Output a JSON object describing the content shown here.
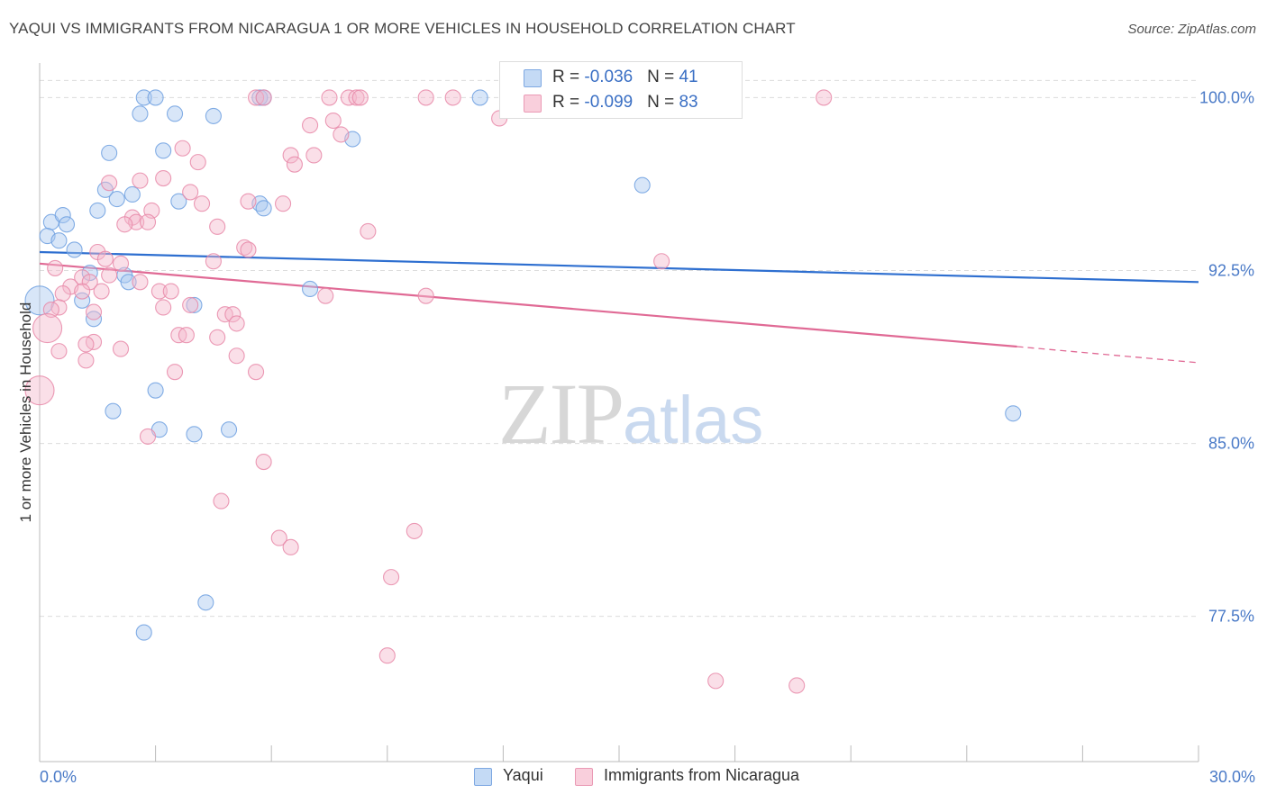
{
  "header": {
    "title": "YAQUI VS IMMIGRANTS FROM NICARAGUA 1 OR MORE VEHICLES IN HOUSEHOLD CORRELATION CHART",
    "source": "Source: ZipAtlas.com"
  },
  "watermark": {
    "zip": "ZIP",
    "atlas": "atlas"
  },
  "legend": {
    "rows": [
      {
        "r_label": "R = ",
        "r_value": "-0.036",
        "n_label": "N = ",
        "n_value": "41",
        "color": "#a9c8f0"
      },
      {
        "r_label": "R = ",
        "r_value": "-0.099",
        "n_label": "N = ",
        "n_value": "83",
        "color": "#f5b8cb"
      }
    ]
  },
  "bottom_legend": [
    {
      "label": "Yaqui",
      "color": "#a9c8f0"
    },
    {
      "label": "Immigrants from Nicaragua",
      "color": "#f5b8cb"
    }
  ],
  "chart_data": {
    "type": "scatter",
    "title": "YAQUI VS IMMIGRANTS FROM NICARAGUA 1 OR MORE VEHICLES IN HOUSEHOLD CORRELATION CHART",
    "ylabel": "1 or more Vehicles in Household",
    "xlabel": "",
    "xlim": [
      0,
      30
    ],
    "ylim": [
      71.2,
      101.5
    ],
    "x_tick_labels": [
      "0.0%",
      "30.0%"
    ],
    "y_ticks": [
      77.5,
      85.0,
      92.5,
      100.0
    ],
    "y_tick_labels": [
      "77.5%",
      "85.0%",
      "92.5%",
      "100.0%"
    ],
    "grid": true,
    "series": [
      {
        "name": "Yaqui",
        "color": "#6fa0e0",
        "fill": "#a9c8f0",
        "trend": {
          "x": [
            0.0,
            30.0
          ],
          "y": [
            93.3,
            92.0
          ]
        },
        "points": [
          [
            2.7,
            100.0
          ],
          [
            3.0,
            100.0
          ],
          [
            5.7,
            100.0
          ],
          [
            5.8,
            100.0
          ],
          [
            11.4,
            100.0
          ],
          [
            2.6,
            99.3
          ],
          [
            3.5,
            99.3
          ],
          [
            4.5,
            99.2
          ],
          [
            8.1,
            98.2
          ],
          [
            1.8,
            97.6
          ],
          [
            3.2,
            97.7
          ],
          [
            1.7,
            96.0
          ],
          [
            2.0,
            95.6
          ],
          [
            2.4,
            95.8
          ],
          [
            3.6,
            95.5
          ],
          [
            5.7,
            95.4
          ],
          [
            5.8,
            95.2
          ],
          [
            15.6,
            96.2
          ],
          [
            1.5,
            95.1
          ],
          [
            0.3,
            94.6
          ],
          [
            0.6,
            94.9
          ],
          [
            0.7,
            94.5
          ],
          [
            0.2,
            94.0
          ],
          [
            0.5,
            93.8
          ],
          [
            0.9,
            93.4
          ],
          [
            1.3,
            92.4
          ],
          [
            2.2,
            92.3
          ],
          [
            2.3,
            92.0
          ],
          [
            7.0,
            91.7
          ],
          [
            0.0,
            91.2
          ],
          [
            1.1,
            91.2
          ],
          [
            4.0,
            91.0
          ],
          [
            1.4,
            90.4
          ],
          [
            3.0,
            87.3
          ],
          [
            1.9,
            86.4
          ],
          [
            3.1,
            85.6
          ],
          [
            4.0,
            85.4
          ],
          [
            4.9,
            85.6
          ],
          [
            25.2,
            86.3
          ],
          [
            4.3,
            78.1
          ],
          [
            2.7,
            76.8
          ]
        ],
        "sizes_large": [
          [
            0.0,
            91.2
          ]
        ]
      },
      {
        "name": "Immigrants from Nicaragua",
        "color": "#e888a8",
        "fill": "#f5b8cb",
        "trend": {
          "x": [
            0.0,
            25.3
          ],
          "y": [
            92.8,
            89.2
          ]
        },
        "trend_dashed": {
          "x": [
            25.3,
            30.0
          ],
          "y": [
            89.2,
            88.5
          ]
        },
        "points": [
          [
            5.6,
            100.0
          ],
          [
            5.8,
            100.0
          ],
          [
            7.5,
            100.0
          ],
          [
            8.0,
            100.0
          ],
          [
            8.2,
            100.0
          ],
          [
            8.3,
            100.0
          ],
          [
            10.0,
            100.0
          ],
          [
            10.7,
            100.0
          ],
          [
            20.3,
            100.0
          ],
          [
            11.9,
            99.1
          ],
          [
            7.6,
            99.0
          ],
          [
            7.0,
            98.8
          ],
          [
            7.8,
            98.4
          ],
          [
            3.7,
            97.8
          ],
          [
            6.5,
            97.5
          ],
          [
            7.1,
            97.5
          ],
          [
            4.1,
            97.2
          ],
          [
            6.6,
            97.1
          ],
          [
            3.2,
            96.5
          ],
          [
            2.6,
            96.4
          ],
          [
            1.8,
            96.3
          ],
          [
            3.9,
            95.9
          ],
          [
            5.4,
            95.5
          ],
          [
            6.3,
            95.4
          ],
          [
            4.2,
            95.4
          ],
          [
            2.9,
            95.1
          ],
          [
            2.4,
            94.8
          ],
          [
            2.5,
            94.6
          ],
          [
            2.8,
            94.6
          ],
          [
            2.2,
            94.5
          ],
          [
            4.6,
            94.4
          ],
          [
            8.5,
            94.2
          ],
          [
            5.3,
            93.5
          ],
          [
            5.4,
            93.4
          ],
          [
            1.5,
            93.3
          ],
          [
            1.7,
            93.0
          ],
          [
            4.5,
            92.9
          ],
          [
            16.1,
            92.9
          ],
          [
            2.1,
            92.8
          ],
          [
            0.4,
            92.6
          ],
          [
            1.1,
            92.2
          ],
          [
            1.8,
            92.3
          ],
          [
            1.3,
            92.0
          ],
          [
            2.6,
            92.0
          ],
          [
            0.8,
            91.8
          ],
          [
            1.1,
            91.6
          ],
          [
            1.6,
            91.6
          ],
          [
            0.6,
            91.5
          ],
          [
            3.1,
            91.6
          ],
          [
            3.4,
            91.6
          ],
          [
            7.4,
            91.4
          ],
          [
            10.0,
            91.4
          ],
          [
            0.5,
            90.9
          ],
          [
            3.2,
            90.9
          ],
          [
            3.9,
            91.0
          ],
          [
            0.3,
            90.8
          ],
          [
            1.4,
            90.7
          ],
          [
            4.8,
            90.6
          ],
          [
            5.0,
            90.6
          ],
          [
            5.1,
            90.2
          ],
          [
            0.2,
            90.0
          ],
          [
            3.6,
            89.7
          ],
          [
            3.8,
            89.7
          ],
          [
            4.6,
            89.6
          ],
          [
            1.4,
            89.4
          ],
          [
            0.5,
            89.0
          ],
          [
            2.1,
            89.1
          ],
          [
            5.1,
            88.8
          ],
          [
            1.2,
            88.6
          ],
          [
            3.5,
            88.1
          ],
          [
            5.6,
            88.1
          ],
          [
            0.0,
            87.3
          ],
          [
            2.8,
            85.3
          ],
          [
            5.8,
            84.2
          ],
          [
            4.7,
            82.5
          ],
          [
            6.2,
            80.9
          ],
          [
            6.5,
            80.5
          ],
          [
            9.7,
            81.2
          ],
          [
            9.1,
            79.2
          ],
          [
            9.0,
            75.8
          ],
          [
            17.5,
            74.7
          ],
          [
            19.6,
            74.5
          ],
          [
            1.2,
            89.3
          ]
        ],
        "sizes_large": [
          [
            0.0,
            87.3
          ],
          [
            0.2,
            90.0
          ]
        ]
      }
    ]
  }
}
